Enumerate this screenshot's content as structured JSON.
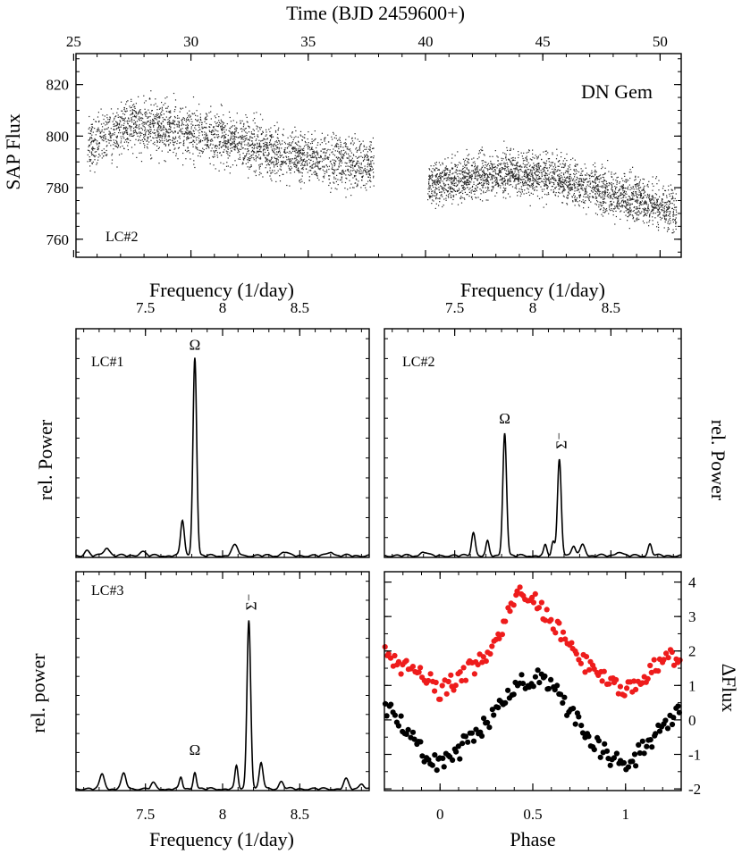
{
  "chart_data": [
    {
      "id": "lightcurve",
      "type": "scatter",
      "title": "DN Gem",
      "panel_label": "LC#2",
      "xlabel": "Time (BJD 2459600+)",
      "ylabel": "SAP Flux",
      "xlim": [
        25.1,
        50.9
      ],
      "ylim": [
        753,
        832
      ],
      "xticks": [
        25,
        30,
        35,
        40,
        45,
        50
      ],
      "xtick_labels": [
        "25",
        "30",
        "35",
        "40",
        "45",
        "50"
      ],
      "yticks": [
        760,
        780,
        800,
        820
      ],
      "ytick_labels": [
        "760",
        "780",
        "800",
        "820"
      ],
      "segments": [
        {
          "name": "segment 1",
          "x_range": [
            25.6,
            37.8
          ],
          "trend_x": [
            25.6,
            27.5,
            30.0,
            33.0,
            35.5,
            37.8
          ],
          "trend_y": [
            796,
            805,
            802,
            795,
            791,
            789
          ],
          "scatter": 7
        },
        {
          "name": "segment 2",
          "x_range": [
            40.1,
            50.7
          ],
          "trend_x": [
            40.1,
            41.5,
            43.5,
            45.5,
            47.5,
            49.5,
            50.7
          ],
          "trend_y": [
            781,
            783,
            786,
            784,
            779,
            774,
            771
          ],
          "scatter": 6
        }
      ]
    },
    {
      "id": "power_lc1",
      "type": "line",
      "panel_label": "LC#1",
      "xlabel": "Frequency (1/day)",
      "ylabel": "rel. Power",
      "xlim": [
        7.05,
        8.95
      ],
      "ylim": [
        0,
        1.15
      ],
      "xticks": [
        7.5,
        8,
        8.5
      ],
      "xtick_labels": [
        "7.5",
        "8",
        "8.5"
      ],
      "annotations": [
        {
          "text": "Ω",
          "x": 7.82,
          "y": 1.0
        }
      ],
      "components": [
        {
          "f": 7.82,
          "a": 1.0,
          "w": 0.012
        },
        {
          "f": 7.74,
          "a": 0.18,
          "w": 0.012
        },
        {
          "f": 8.08,
          "a": 0.05,
          "w": 0.02
        },
        {
          "f": 7.25,
          "a": 0.04,
          "w": 0.02
        },
        {
          "f": 7.12,
          "a": 0.025,
          "w": 0.015
        },
        {
          "f": 7.48,
          "a": 0.02,
          "w": 0.02
        },
        {
          "f": 8.4,
          "a": 0.02,
          "w": 0.02
        },
        {
          "f": 8.7,
          "a": 0.02,
          "w": 0.02
        }
      ]
    },
    {
      "id": "power_lc2",
      "type": "line",
      "panel_label": "LC#2",
      "xlabel": "Frequency (1/day)",
      "ylabel": "rel. Power",
      "xlim": [
        7.05,
        8.95
      ],
      "ylim": [
        0,
        1.15
      ],
      "xticks": [
        7.5,
        8,
        8.5
      ],
      "xtick_labels": [
        "7.5",
        "8",
        "8.5"
      ],
      "annotations": [
        {
          "text": "Ω",
          "x": 7.82,
          "y": 0.63
        },
        {
          "text": "Σ⁻",
          "x": 8.17,
          "y": 0.5
        }
      ],
      "components": [
        {
          "f": 7.82,
          "a": 0.62,
          "w": 0.012
        },
        {
          "f": 8.17,
          "a": 0.49,
          "w": 0.012
        },
        {
          "f": 7.62,
          "a": 0.12,
          "w": 0.012
        },
        {
          "f": 7.71,
          "a": 0.07,
          "w": 0.01
        },
        {
          "f": 8.13,
          "a": 0.07,
          "w": 0.01
        },
        {
          "f": 8.08,
          "a": 0.05,
          "w": 0.01
        },
        {
          "f": 8.26,
          "a": 0.05,
          "w": 0.012
        },
        {
          "f": 8.32,
          "a": 0.06,
          "w": 0.015
        },
        {
          "f": 8.75,
          "a": 0.06,
          "w": 0.012
        },
        {
          "f": 7.3,
          "a": 0.02,
          "w": 0.02
        },
        {
          "f": 8.55,
          "a": 0.02,
          "w": 0.02
        }
      ]
    },
    {
      "id": "power_lc3",
      "type": "line",
      "panel_label": "LC#3",
      "xlabel": "Frequency (1/day)",
      "ylabel": "rel. power",
      "xlim": [
        7.05,
        8.95
      ],
      "ylim": [
        0,
        1.15
      ],
      "xticks": [
        7.5,
        8,
        8.5
      ],
      "xtick_labels": [
        "7.5",
        "8",
        "8.5"
      ],
      "annotations": [
        {
          "text": "Ω",
          "x": 7.82,
          "y": 0.14
        },
        {
          "text": "Σ⁻",
          "x": 8.17,
          "y": 0.9
        }
      ],
      "components": [
        {
          "f": 8.17,
          "a": 0.89,
          "w": 0.012
        },
        {
          "f": 8.25,
          "a": 0.14,
          "w": 0.012
        },
        {
          "f": 8.09,
          "a": 0.12,
          "w": 0.01
        },
        {
          "f": 7.82,
          "a": 0.09,
          "w": 0.01
        },
        {
          "f": 7.73,
          "a": 0.06,
          "w": 0.01
        },
        {
          "f": 7.22,
          "a": 0.08,
          "w": 0.015
        },
        {
          "f": 7.36,
          "a": 0.08,
          "w": 0.015
        },
        {
          "f": 7.55,
          "a": 0.03,
          "w": 0.015
        },
        {
          "f": 8.38,
          "a": 0.04,
          "w": 0.015
        },
        {
          "f": 8.8,
          "a": 0.05,
          "w": 0.015
        },
        {
          "f": 8.9,
          "a": 0.03,
          "w": 0.015
        }
      ]
    },
    {
      "id": "phase",
      "type": "scatter",
      "xlabel": "Phase",
      "ylabel": "ΔFlux",
      "xlim": [
        -0.3,
        1.3
      ],
      "ylim": [
        -2.05,
        4.3
      ],
      "xticks": [
        0,
        0.5,
        1
      ],
      "xtick_labels": [
        "0",
        "0.5",
        "1"
      ],
      "yticks": [
        -2,
        -1,
        0,
        1,
        2,
        3,
        4
      ],
      "ytick_labels": [
        "-2",
        "-1",
        "0",
        "1",
        "2",
        "3",
        "4"
      ],
      "series": [
        {
          "name": "red",
          "color": "#ee1c1c",
          "phase": [
            -0.3,
            -0.25,
            -0.2,
            -0.15,
            -0.1,
            -0.05,
            0.0,
            0.05,
            0.1,
            0.15,
            0.2,
            0.25,
            0.3,
            0.35,
            0.4,
            0.45,
            0.5,
            0.55,
            0.6,
            0.65,
            0.7,
            0.75,
            0.8,
            0.85,
            0.9,
            0.95,
            1.0,
            1.05,
            1.1,
            1.15,
            1.2,
            1.25,
            1.3
          ],
          "flux": [
            2.0,
            1.7,
            1.5,
            1.4,
            1.3,
            1.1,
            0.8,
            1.0,
            1.2,
            1.4,
            1.6,
            1.8,
            2.2,
            2.8,
            3.4,
            3.8,
            3.6,
            3.2,
            2.9,
            2.6,
            2.4,
            1.9,
            1.5,
            1.4,
            1.2,
            1.0,
            0.8,
            1.0,
            1.3,
            1.5,
            1.7,
            1.8,
            2.0
          ]
        },
        {
          "name": "black",
          "color": "#000000",
          "phase": [
            -0.3,
            -0.25,
            -0.2,
            -0.15,
            -0.1,
            -0.05,
            0.0,
            0.05,
            0.1,
            0.15,
            0.2,
            0.25,
            0.3,
            0.35,
            0.4,
            0.45,
            0.5,
            0.55,
            0.6,
            0.65,
            0.7,
            0.75,
            0.8,
            0.85,
            0.9,
            0.95,
            1.0,
            1.05,
            1.1,
            1.15,
            1.2,
            1.25,
            1.3
          ],
          "flux": [
            0.4,
            0.1,
            -0.2,
            -0.5,
            -0.9,
            -1.2,
            -1.3,
            -1.1,
            -0.9,
            -0.6,
            -0.3,
            -0.1,
            0.2,
            0.6,
            0.9,
            1.1,
            1.2,
            1.3,
            1.0,
            0.6,
            0.3,
            -0.1,
            -0.5,
            -0.8,
            -1.0,
            -1.2,
            -1.4,
            -1.1,
            -0.8,
            -0.6,
            -0.2,
            0.0,
            0.3
          ]
        }
      ]
    }
  ]
}
